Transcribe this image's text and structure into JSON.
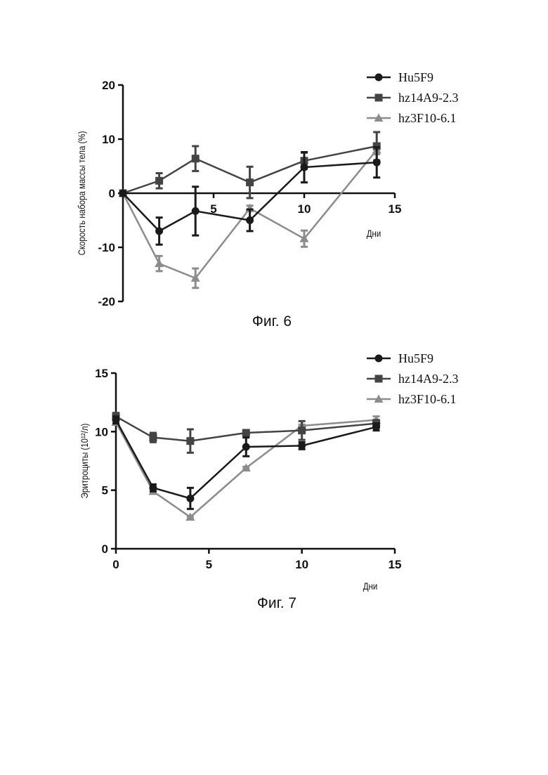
{
  "figures": [
    {
      "caption": "Фиг. 6"
    },
    {
      "caption": "Фиг. 7"
    }
  ],
  "chart_data": [
    {
      "type": "line",
      "ylabel": "Скорость набора массы тела (%)",
      "xlabel": "Дни",
      "xlim": [
        0,
        15
      ],
      "ylim": [
        -20,
        20
      ],
      "xticks": [
        5,
        10,
        15
      ],
      "yticks": [
        -20,
        -10,
        0,
        10,
        20
      ],
      "legend_position": "top-right",
      "series": [
        {
          "name": "Hu5F9",
          "color": "#1a1a1a",
          "marker": "circle",
          "x": [
            0,
            2,
            4,
            7,
            10,
            14
          ],
          "y": [
            0,
            -7,
            -3.3,
            -5,
            4.8,
            5.7
          ],
          "err": [
            0,
            2.5,
            4.5,
            2,
            2.8,
            2.8
          ]
        },
        {
          "name": "hz14A9-2.3",
          "color": "#444444",
          "marker": "square",
          "x": [
            0,
            2,
            4,
            7,
            10,
            14
          ],
          "y": [
            0,
            2.3,
            6.4,
            2,
            6,
            8.7
          ],
          "err": [
            0,
            1.4,
            2.3,
            2.9,
            1.5,
            2.6
          ]
        },
        {
          "name": "hz3F10-6.1",
          "color": "#8c8c8c",
          "marker": "triangle",
          "x": [
            0,
            2,
            4,
            7,
            10,
            14
          ],
          "y": [
            0,
            -13,
            -15.7,
            -2.8,
            -8.4,
            8
          ],
          "err": [
            0,
            1.4,
            1.8,
            0.5,
            1.5,
            0.8
          ]
        }
      ]
    },
    {
      "type": "line",
      "ylabel": "Эритроциты (10¹²/л)",
      "xlabel": "Дни",
      "xlim": [
        0,
        15
      ],
      "ylim": [
        0,
        15
      ],
      "xticks": [
        0,
        5,
        10,
        15
      ],
      "yticks": [
        0,
        5,
        10,
        15
      ],
      "legend_position": "top-right",
      "series": [
        {
          "name": "Hu5F9",
          "color": "#1a1a1a",
          "marker": "circle",
          "x": [
            0,
            2,
            4,
            7,
            10,
            14
          ],
          "y": [
            11,
            5.2,
            4.3,
            8.7,
            8.8,
            10.4
          ],
          "err": [
            0.3,
            0.3,
            0.9,
            0.8,
            0.3,
            0.3
          ]
        },
        {
          "name": "hz14A9-2.3",
          "color": "#444444",
          "marker": "square",
          "x": [
            0,
            2,
            4,
            7,
            10,
            14
          ],
          "y": [
            11.3,
            9.5,
            9.2,
            9.9,
            10.1,
            10.7
          ],
          "err": [
            0.3,
            0.4,
            1.0,
            0.2,
            0.8,
            0.3
          ]
        },
        {
          "name": "hz3F10-6.1",
          "color": "#8c8c8c",
          "marker": "triangle",
          "x": [
            0,
            2,
            4,
            7,
            10,
            14
          ],
          "y": [
            10.8,
            4.9,
            2.7,
            6.9,
            10.5,
            11
          ],
          "err": [
            0.2,
            0.1,
            0.1,
            0.1,
            0.1,
            0.3
          ]
        }
      ]
    }
  ]
}
